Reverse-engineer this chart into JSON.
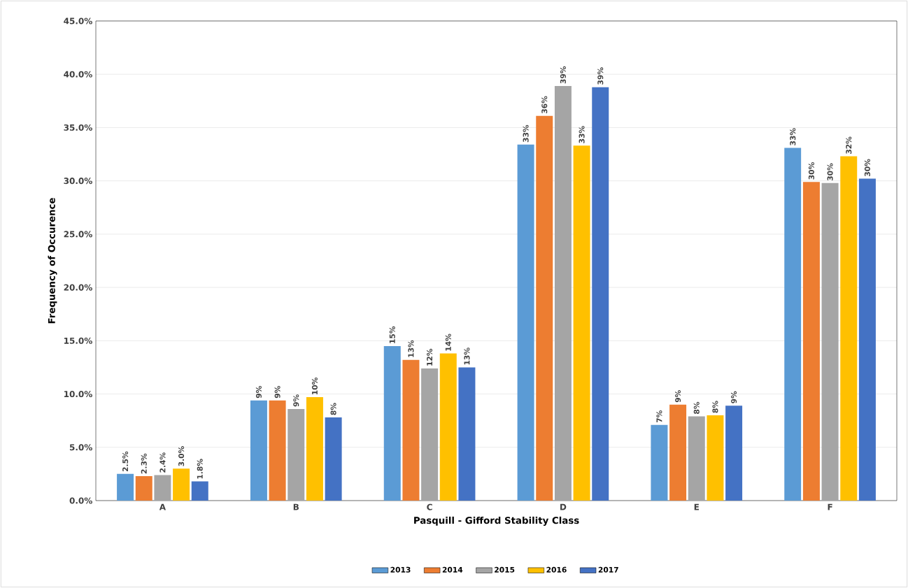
{
  "chart_data": {
    "type": "bar",
    "xlabel": "Pasquill - Gifford Stability Class",
    "ylabel": "Frequency of Occurence",
    "categories": [
      "A",
      "B",
      "C",
      "D",
      "E",
      "F"
    ],
    "series": [
      {
        "name": "2013",
        "color": "#5b9bd5",
        "values": [
          2.5,
          9.4,
          14.5,
          33.4,
          7.1,
          33.1
        ],
        "value_labels": [
          "2.5%",
          "9%",
          "15%",
          "33%",
          "7%",
          "33%"
        ]
      },
      {
        "name": "2014",
        "color": "#ed7d31",
        "values": [
          2.3,
          9.4,
          13.2,
          36.1,
          9.0,
          29.9
        ],
        "value_labels": [
          "2.3%",
          "9%",
          "13%",
          "36%",
          "9%",
          "30%"
        ]
      },
      {
        "name": "2015",
        "color": "#a5a5a5",
        "values": [
          2.4,
          8.6,
          12.4,
          38.9,
          7.9,
          29.8
        ],
        "value_labels": [
          "2.4%",
          "9%",
          "12%",
          "39%",
          "8%",
          "30%"
        ]
      },
      {
        "name": "2016",
        "color": "#ffc000",
        "values": [
          3.0,
          9.7,
          13.8,
          33.3,
          8.0,
          32.3
        ],
        "value_labels": [
          "3.0%",
          "10%",
          "14%",
          "33%",
          "8%",
          "32%"
        ]
      },
      {
        "name": "2017",
        "color": "#4472c4",
        "values": [
          1.8,
          7.8,
          12.5,
          38.8,
          8.9,
          30.2
        ],
        "value_labels": [
          "1.8%",
          "8%",
          "13%",
          "39%",
          "9%",
          "30%"
        ]
      }
    ],
    "ylim": [
      0,
      45
    ],
    "yticks": [
      {
        "value": 0,
        "label": "0.0%"
      },
      {
        "value": 5,
        "label": "5.0%"
      },
      {
        "value": 10,
        "label": "10.0%"
      },
      {
        "value": 15,
        "label": "15.0%"
      },
      {
        "value": 20,
        "label": "20.0%"
      },
      {
        "value": 25,
        "label": "25.0%"
      },
      {
        "value": 30,
        "label": "30.0%"
      },
      {
        "value": 35,
        "label": "35.0%"
      },
      {
        "value": 40,
        "label": "40.0%"
      },
      {
        "value": 45,
        "label": "45.0%"
      }
    ],
    "grid": "y",
    "legend": "bottom"
  }
}
